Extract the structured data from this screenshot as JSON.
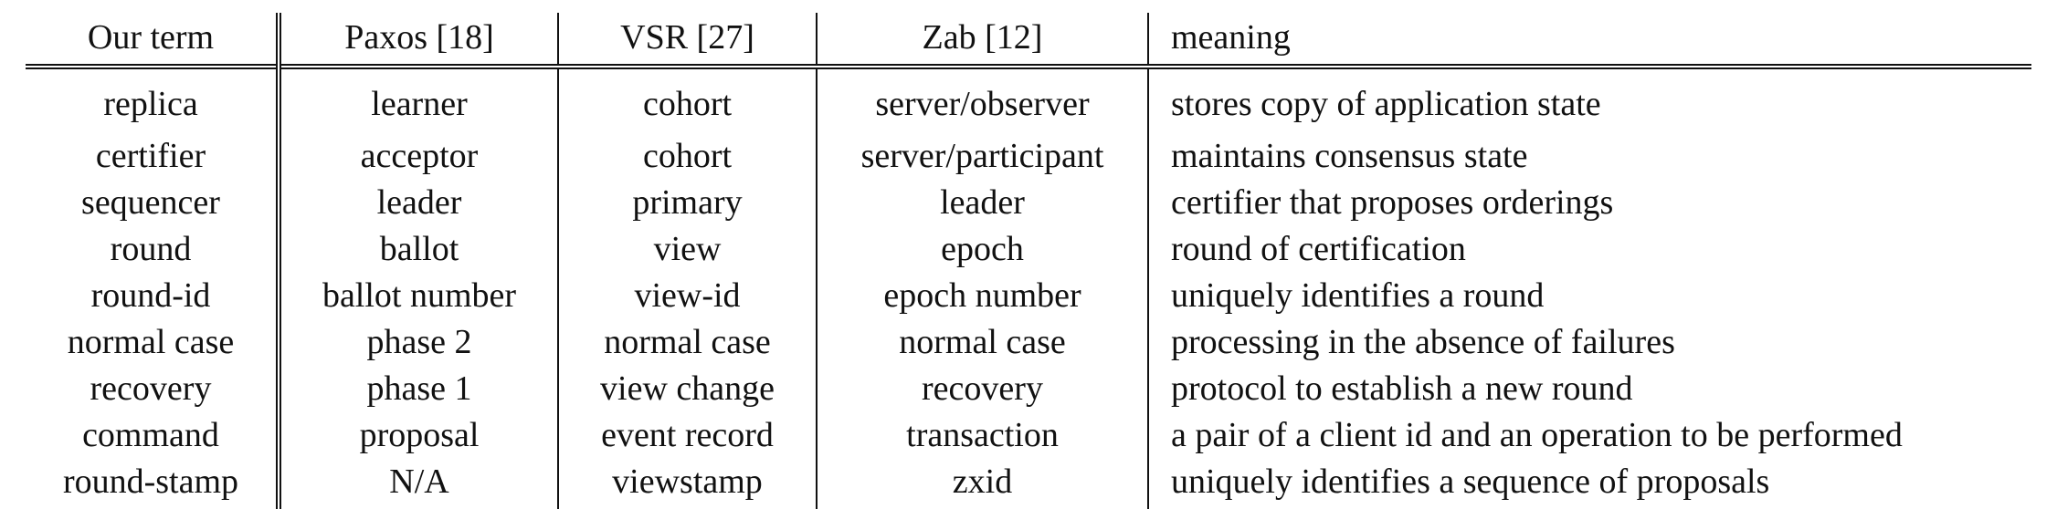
{
  "table": {
    "headers": [
      "Our term",
      "Paxos [18]",
      "VSR [27]",
      "Zab [12]",
      "meaning"
    ],
    "rows": [
      [
        "replica",
        "learner",
        "cohort",
        "server/observer",
        "stores copy of application state"
      ],
      [
        "certifier",
        "acceptor",
        "cohort",
        "server/participant",
        "maintains consensus state"
      ],
      [
        "sequencer",
        "leader",
        "primary",
        "leader",
        "certifier that proposes orderings"
      ],
      [
        "round",
        "ballot",
        "view",
        "epoch",
        "round of certification"
      ],
      [
        "round-id",
        "ballot number",
        "view-id",
        "epoch number",
        "uniquely identifies a round"
      ],
      [
        "normal case",
        "phase 2",
        "normal case",
        "normal case",
        "processing in the absence of failures"
      ],
      [
        "recovery",
        "phase 1",
        "view change",
        "recovery",
        "protocol to establish a new round"
      ],
      [
        "command",
        "proposal",
        "event record",
        "transaction",
        "a pair of a client id and an operation to be performed"
      ],
      [
        "round-stamp",
        "N/A",
        "viewstamp",
        "zxid",
        "uniquely identifies a sequence of proposals"
      ]
    ]
  }
}
